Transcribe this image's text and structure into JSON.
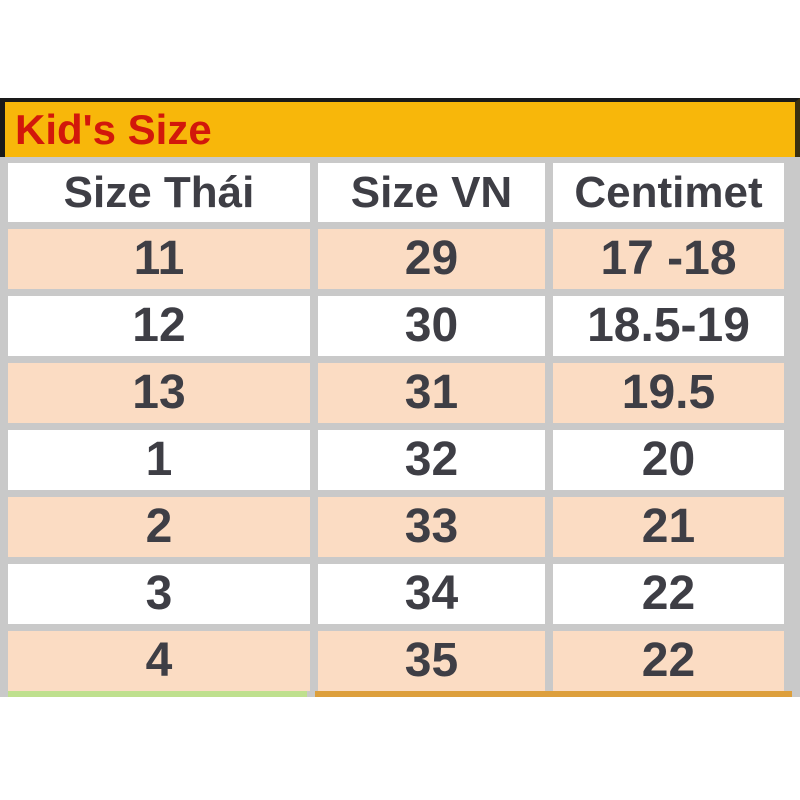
{
  "chart_data": {
    "type": "table",
    "title": "Kid's Size",
    "columns": [
      "Size Thái",
      "Size VN",
      "Centimet"
    ],
    "rows": [
      [
        "11",
        "29",
        "17 -18"
      ],
      [
        "12",
        "30",
        "18.5-19"
      ],
      [
        "13",
        "31",
        "19.5"
      ],
      [
        "1",
        "32",
        "20"
      ],
      [
        "2",
        "33",
        "21"
      ],
      [
        "3",
        "34",
        "22"
      ],
      [
        "4",
        "35",
        "22"
      ]
    ]
  },
  "colors": {
    "title_bg": "#F8B70A",
    "title_text": "#D2170B",
    "row_alt_bg": "#FBDCC3",
    "row_bg": "#FFFFFF",
    "grid_lines": "#C9C9C9",
    "cell_text": "#3E3E45",
    "top_border": "#1A1A1A",
    "bottom_edge_left": "#BFE08E",
    "bottom_edge_right": "#DD9F3C"
  }
}
